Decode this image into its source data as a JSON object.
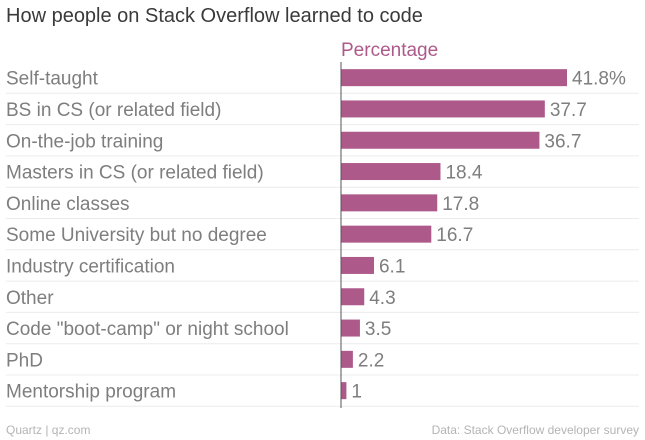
{
  "chart_data": {
    "type": "bar",
    "orientation": "horizontal",
    "title": "How people on Stack Overflow learned to code",
    "series_label": "Percentage",
    "categories": [
      "Self-taught",
      "BS in CS (or related field)",
      "On-the-job training",
      "Masters in CS (or related field)",
      "Online classes",
      "Some University but no degree",
      "Industry certification",
      "Other",
      "Code \"boot-camp\" or night school",
      "PhD",
      "Mentorship program"
    ],
    "values": [
      41.8,
      37.7,
      36.7,
      18.4,
      17.8,
      16.7,
      6.1,
      4.3,
      3.5,
      2.2,
      1
    ],
    "value_labels": [
      "41.8%",
      "37.7",
      "36.7",
      "18.4",
      "17.8",
      "16.7",
      "6.1",
      "4.3",
      "3.5",
      "2.2",
      "1"
    ],
    "xlim": [
      0,
      41.8
    ],
    "bar_color": "#ad5a8b",
    "grid": true
  },
  "footer": {
    "source_left": "Quartz | qz.com",
    "source_right": "Data: Stack Overflow developer survey"
  }
}
